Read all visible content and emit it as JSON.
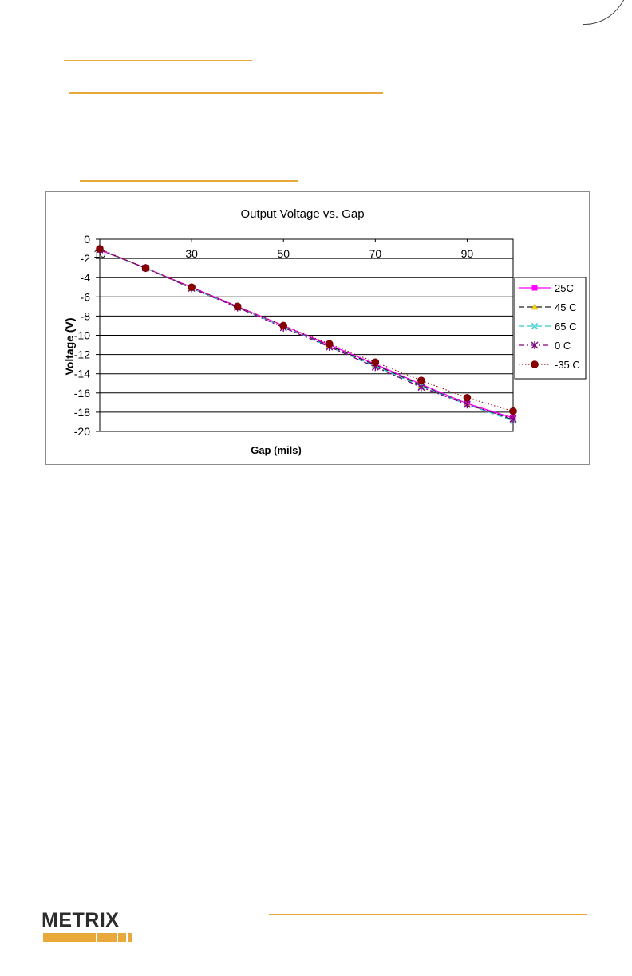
{
  "chart_data": {
    "type": "line",
    "title": "Output  Voltage vs. Gap",
    "xlabel": "Gap (mils)",
    "ylabel": "Voltage (V)",
    "xlim": [
      10,
      100
    ],
    "ylim": [
      -20,
      0
    ],
    "x_ticks": [
      "10",
      "30",
      "50",
      "70",
      "90"
    ],
    "y_ticks": [
      "0",
      "-2",
      "-4",
      "-6",
      "-8",
      "-10",
      "-12",
      "-14",
      "-16",
      "-18",
      "-20"
    ],
    "grid": "horizontal",
    "legend_position": "right",
    "x": [
      10,
      20,
      30,
      40,
      50,
      60,
      70,
      80,
      90,
      100
    ],
    "series": [
      {
        "name": "25C",
        "color": "#ff00ff",
        "marker": "square",
        "dash": "solid",
        "values": [
          -1.1,
          -3.0,
          -5.0,
          -7.0,
          -9.0,
          -11.0,
          -13.0,
          -15.1,
          -17.1,
          -18.6
        ]
      },
      {
        "name": "45 C",
        "color": "#1f1f1f",
        "marker": "triangle",
        "dash": "dash",
        "values": [
          -1.1,
          -3.0,
          -5.1,
          -7.1,
          -9.1,
          -11.1,
          -13.1,
          -15.2,
          -17.2,
          -18.8
        ]
      },
      {
        "name": "65 C",
        "color": "#33cccc",
        "marker": "x",
        "dash": "dash",
        "values": [
          -1.1,
          -3.0,
          -5.1,
          -7.1,
          -9.1,
          -11.2,
          -13.2,
          -15.3,
          -17.2,
          -18.9
        ]
      },
      {
        "name": "0 C",
        "color": "#800080",
        "marker": "star",
        "dash": "dashdot",
        "values": [
          -1.1,
          -3.0,
          -5.1,
          -7.1,
          -9.2,
          -11.2,
          -13.3,
          -15.4,
          -17.2,
          -18.7
        ]
      },
      {
        "name": "-35 C",
        "color": "#8b0000",
        "marker": "circle",
        "dash": "dot",
        "values": [
          -1.0,
          -3.0,
          -5.0,
          -7.0,
          -9.0,
          -10.9,
          -12.8,
          -14.7,
          -16.5,
          -17.9
        ]
      }
    ]
  },
  "footer": {
    "logo_text": "METRIX",
    "brand_color": "#e8a93a"
  }
}
